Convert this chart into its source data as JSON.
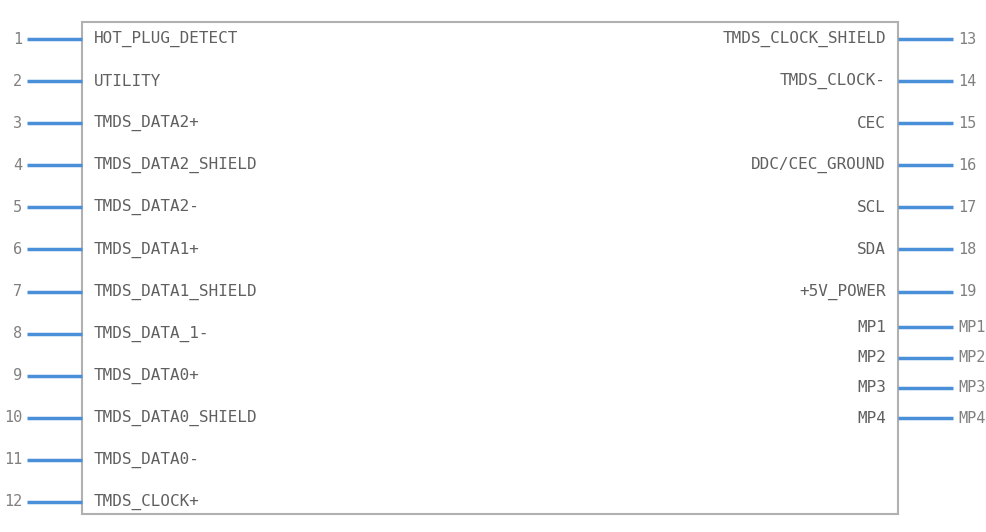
{
  "bg_color": "#ffffff",
  "border_color": "#b0b0b0",
  "pin_color": "#4a90d9",
  "text_color": "#606060",
  "pin_num_color": "#808080",
  "fig_width": 9.86,
  "fig_height": 5.32,
  "dpi": 100,
  "left_pins": [
    {
      "num": "1",
      "label": "HOT_PLUG_DETECT"
    },
    {
      "num": "2",
      "label": "UTILITY"
    },
    {
      "num": "3",
      "label": "TMDS_DATA2+"
    },
    {
      "num": "4",
      "label": "TMDS_DATA2_SHIELD"
    },
    {
      "num": "5",
      "label": "TMDS_DATA2-"
    },
    {
      "num": "6",
      "label": "TMDS_DATA1+"
    },
    {
      "num": "7",
      "label": "TMDS_DATA1_SHIELD"
    },
    {
      "num": "8",
      "label": "TMDS_DATA_1-"
    },
    {
      "num": "9",
      "label": "TMDS_DATA0+"
    },
    {
      "num": "10",
      "label": "TMDS_DATA0_SHIELD"
    },
    {
      "num": "11",
      "label": "TMDS_DATA0-"
    },
    {
      "num": "12",
      "label": "TMDS_CLOCK+"
    }
  ],
  "right_pins": [
    {
      "num": "13",
      "label": "TMDS_CLOCK_SHIELD"
    },
    {
      "num": "14",
      "label": "TMDS_CLOCK-"
    },
    {
      "num": "15",
      "label": "CEC"
    },
    {
      "num": "16",
      "label": "DDC/CEC_GROUND"
    },
    {
      "num": "17",
      "label": "SCL"
    },
    {
      "num": "18",
      "label": "SDA"
    },
    {
      "num": "19",
      "label": "+5V_POWER"
    },
    {
      "num": "MP1",
      "label": "MP1"
    },
    {
      "num": "MP2",
      "label": "MP2"
    },
    {
      "num": "MP3",
      "label": "MP3"
    },
    {
      "num": "MP4",
      "label": "MP4"
    }
  ]
}
